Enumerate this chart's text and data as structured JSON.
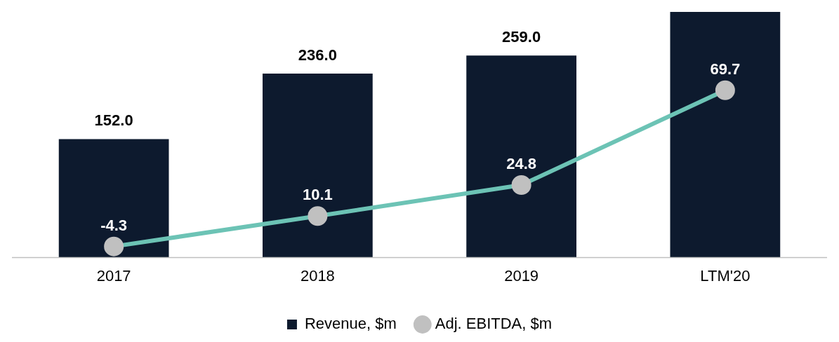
{
  "chart_data": {
    "type": "bar",
    "categories": [
      "2017",
      "2018",
      "2019",
      "LTM'20"
    ],
    "series": [
      {
        "name": "Revenue, $m",
        "color": "#0d1a2e",
        "values": [
          152.0,
          236.0,
          259.0,
          315
        ],
        "value_labels": [
          "152.0",
          "236.0",
          "259.0",
          null
        ]
      },
      {
        "name": "Adj. EBITDA, $m",
        "type": "line",
        "axis": "y2",
        "color": "#6cc3b5",
        "values": [
          -4.3,
          10.1,
          24.8,
          69.7
        ],
        "value_labels": [
          "-4.3",
          "10.1",
          "24.8",
          "69.7"
        ]
      }
    ],
    "ylim": [
      0,
      315
    ],
    "y2lim": [
      -9.6,
      106.8
    ],
    "marker": "circle",
    "line_style": "solid",
    "grid": false,
    "legend": "bottom",
    "tick_labels": "x"
  }
}
